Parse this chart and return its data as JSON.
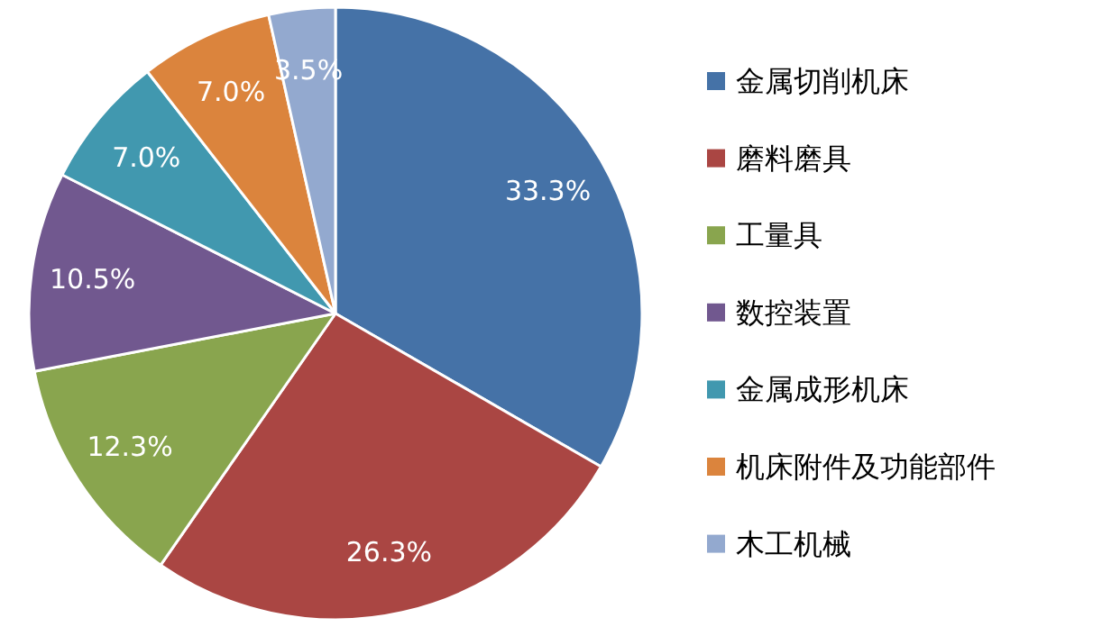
{
  "chart_data": {
    "type": "pie",
    "categories": [
      "金属切削机床",
      "磨料磨具",
      "工量具",
      "数控装置",
      "金属成形机床",
      "机床附件及功能部件",
      "木工机械"
    ],
    "values": [
      33.3,
      26.3,
      12.3,
      10.5,
      7.0,
      7.0,
      3.5
    ],
    "value_labels": [
      "33.3%",
      "26.3%",
      "12.3%",
      "10.5%",
      "7.0%",
      "7.0%",
      "3.5%"
    ],
    "colors": [
      "#4572a7",
      "#aa4643",
      "#89a54e",
      "#71588f",
      "#4198af",
      "#db843d",
      "#93a9cf"
    ],
    "legend": "right"
  }
}
